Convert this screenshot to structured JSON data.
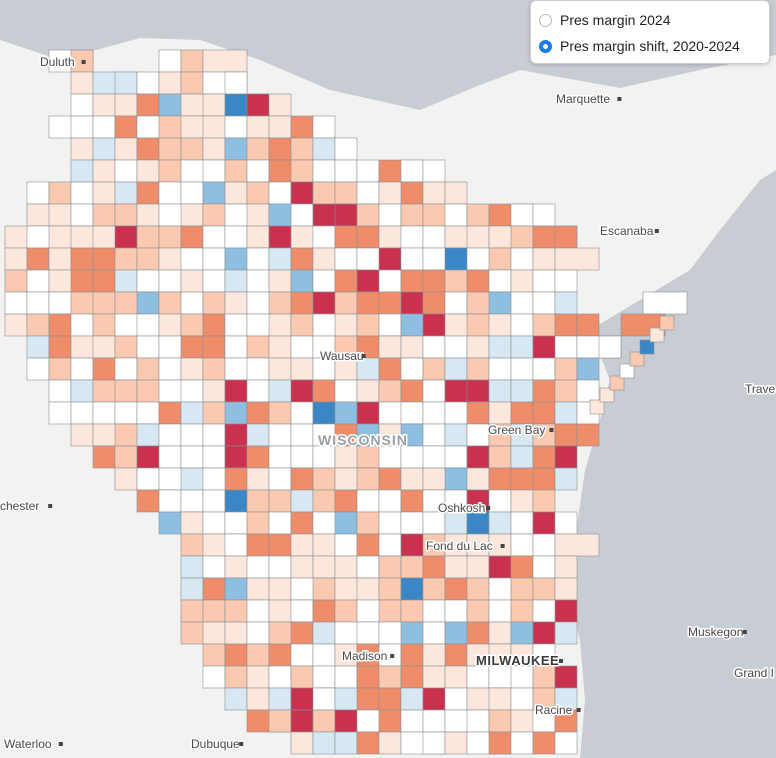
{
  "legend": {
    "options": [
      {
        "label": "Pres margin 2024",
        "selected": false
      },
      {
        "label": "Pres margin shift, 2020-2024",
        "selected": true
      }
    ]
  },
  "places": [
    {
      "name": "Duluth"
    },
    {
      "name": "Marquette"
    },
    {
      "name": "Escanaba"
    },
    {
      "name": "Trave"
    },
    {
      "name": "Wausau"
    },
    {
      "name": "Green Bay"
    },
    {
      "name": "Oshkosh"
    },
    {
      "name": "Fond du Lac"
    },
    {
      "name": "chester"
    },
    {
      "name": "Madison"
    },
    {
      "name": "MILWAUKEE"
    },
    {
      "name": "Muskegon"
    },
    {
      "name": "Grand I"
    },
    {
      "name": "Racine"
    },
    {
      "name": "Waterloo"
    },
    {
      "name": "Dubuque"
    }
  ],
  "state_label": "WISCONSIN",
  "colors": {
    "strong_red": "#c9314f",
    "red": "#ef8d6a",
    "light_red": "#fbc9b0",
    "pale_red": "#fde7dc",
    "neutral": "#ffffff",
    "pale_blue": "#d8e8f3",
    "blue": "#8fbfe0",
    "strong_blue": "#3b86c4",
    "water": "#c7cdd3",
    "land": "#f2f2f0"
  }
}
